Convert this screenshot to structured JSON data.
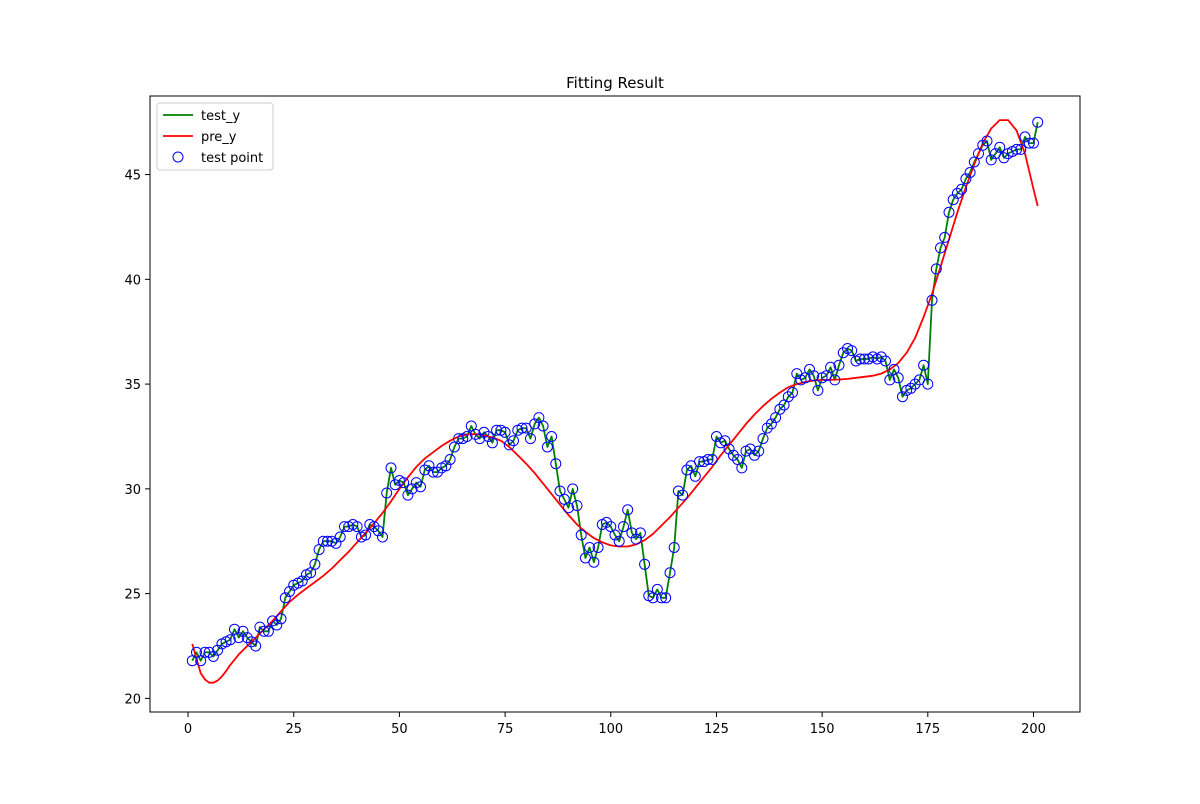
{
  "chart_data": {
    "type": "line",
    "title": "Fitting Result",
    "xlabel": "",
    "ylabel": "",
    "xlim": [
      -9,
      211
    ],
    "ylim": [
      19.35,
      48.75
    ],
    "x_ticks": [
      0,
      25,
      50,
      75,
      100,
      125,
      150,
      175,
      200
    ],
    "y_ticks": [
      20,
      25,
      30,
      35,
      40,
      45
    ],
    "grid": false,
    "legend_position": "upper-left",
    "legend": [
      {
        "label": "test_y",
        "kind": "line",
        "color": "#008000"
      },
      {
        "label": "pre_y",
        "kind": "line",
        "color": "#ff0000"
      },
      {
        "label": "test point",
        "kind": "marker",
        "color": "#0000ff"
      }
    ],
    "series": [
      {
        "name": "test_y",
        "kind": "line",
        "color": "#008000",
        "x": [
          1,
          2,
          3,
          4,
          5,
          6,
          7,
          8,
          9,
          10,
          11,
          12,
          13,
          14,
          15,
          16,
          17,
          18,
          19,
          20,
          21,
          22,
          23,
          24,
          25,
          26,
          27,
          28,
          29,
          30,
          31,
          32,
          33,
          34,
          35,
          36,
          37,
          38,
          39,
          40,
          41,
          42,
          43,
          44,
          45,
          46,
          47,
          48,
          49,
          50,
          51,
          52,
          53,
          54,
          55,
          56,
          57,
          58,
          59,
          60,
          61,
          62,
          63,
          64,
          65,
          66,
          67,
          68,
          69,
          70,
          71,
          72,
          73,
          74,
          75,
          76,
          77,
          78,
          79,
          80,
          81,
          82,
          83,
          84,
          85,
          86,
          87,
          88,
          89,
          90,
          91,
          92,
          93,
          94,
          95,
          96,
          97,
          98,
          99,
          100,
          101,
          102,
          103,
          104,
          105,
          106,
          107,
          108,
          109,
          110,
          111,
          112,
          113,
          114,
          115,
          116,
          117,
          118,
          119,
          120,
          121,
          122,
          123,
          124,
          125,
          126,
          127,
          128,
          129,
          130,
          131,
          132,
          133,
          134,
          135,
          136,
          137,
          138,
          139,
          140,
          141,
          142,
          143,
          144,
          145,
          146,
          147,
          148,
          149,
          150,
          151,
          152,
          153,
          154,
          155,
          156,
          157,
          158,
          159,
          160,
          161,
          162,
          163,
          164,
          165,
          166,
          167,
          168,
          169,
          170,
          171,
          172,
          173,
          174,
          175,
          176,
          177,
          178,
          179,
          180,
          181,
          182,
          183,
          184,
          185,
          186,
          187,
          188,
          189,
          190,
          191,
          192,
          193,
          194,
          195,
          196,
          197,
          198,
          199,
          200,
          201
        ],
        "values": [
          21.8,
          22.2,
          21.8,
          22.2,
          22.2,
          22.0,
          22.3,
          22.6,
          22.7,
          22.8,
          23.3,
          22.9,
          23.2,
          22.9,
          22.7,
          22.5,
          23.4,
          23.2,
          23.2,
          23.7,
          23.5,
          23.8,
          24.8,
          25.1,
          25.4,
          25.5,
          25.6,
          25.9,
          26.0,
          26.4,
          27.1,
          27.5,
          27.5,
          27.5,
          27.4,
          27.7,
          28.2,
          28.2,
          28.3,
          28.2,
          27.7,
          27.8,
          28.3,
          28.2,
          28.0,
          27.7,
          29.8,
          31.0,
          30.2,
          30.4,
          30.3,
          29.7,
          30.0,
          30.3,
          30.1,
          30.9,
          31.1,
          30.8,
          30.8,
          31.0,
          31.1,
          31.4,
          32.0,
          32.4,
          32.4,
          32.5,
          33.0,
          32.6,
          32.4,
          32.7,
          32.5,
          32.2,
          32.8,
          32.8,
          32.7,
          32.1,
          32.3,
          32.8,
          32.9,
          32.9,
          32.4,
          33.1,
          33.4,
          33.0,
          32.0,
          32.5,
          31.2,
          29.9,
          29.5,
          29.1,
          30.0,
          29.2,
          27.8,
          26.7,
          27.2,
          26.5,
          27.2,
          28.3,
          28.4,
          28.2,
          27.8,
          27.5,
          28.2,
          29.0,
          27.9,
          27.6,
          27.9,
          26.4,
          24.9,
          24.8,
          25.2,
          24.8,
          24.8,
          26.0,
          27.2,
          29.9,
          29.7,
          30.9,
          31.1,
          30.6,
          31.3,
          31.3,
          31.4,
          31.4,
          32.5,
          32.2,
          32.3,
          31.9,
          31.6,
          31.4,
          31.0,
          31.8,
          31.9,
          31.6,
          31.8,
          32.4,
          32.9,
          33.1,
          33.4,
          33.8,
          34.0,
          34.4,
          34.6,
          35.5,
          35.2,
          35.3,
          35.7,
          35.4,
          34.7,
          35.3,
          35.4,
          35.8,
          35.2,
          35.9,
          36.5,
          36.7,
          36.6,
          36.1,
          36.2,
          36.2,
          36.2,
          36.3,
          36.2,
          36.3,
          36.1,
          35.2,
          35.7,
          35.3,
          34.4,
          34.7,
          34.8,
          35.0,
          35.2,
          35.9,
          35.0,
          39.0,
          40.5,
          41.5,
          42.0,
          43.2,
          43.8,
          44.1,
          44.3,
          44.8,
          45.1,
          45.6,
          46.0,
          46.4,
          46.6,
          45.7,
          46.0,
          46.3,
          45.8,
          46.0,
          46.1,
          46.2,
          46.2,
          46.8,
          46.5,
          46.5,
          47.5
        ]
      },
      {
        "name": "pre_y",
        "kind": "line",
        "color": "#ff0000",
        "x": [
          1,
          2,
          3,
          4,
          5,
          6,
          7,
          8,
          9,
          10,
          12,
          14,
          16,
          18,
          20,
          22,
          24,
          26,
          28,
          30,
          32,
          34,
          36,
          38,
          40,
          42,
          44,
          46,
          48,
          50,
          52,
          54,
          56,
          58,
          60,
          62,
          64,
          66,
          68,
          70,
          72,
          74,
          76,
          78,
          80,
          82,
          84,
          86,
          88,
          90,
          92,
          94,
          96,
          98,
          100,
          102,
          104,
          106,
          108,
          110,
          112,
          114,
          116,
          118,
          120,
          122,
          124,
          126,
          128,
          130,
          132,
          134,
          136,
          138,
          140,
          142,
          144,
          146,
          148,
          150,
          152,
          154,
          156,
          158,
          160,
          162,
          164,
          166,
          168,
          170,
          172,
          174,
          176,
          178,
          180,
          182,
          184,
          186,
          188,
          190,
          192,
          194,
          196,
          198,
          200,
          201
        ],
        "values": [
          22.6,
          21.9,
          21.2,
          20.9,
          20.75,
          20.75,
          20.85,
          21.05,
          21.3,
          21.6,
          22.1,
          22.5,
          22.9,
          23.3,
          23.7,
          24.15,
          24.6,
          24.95,
          25.25,
          25.55,
          25.85,
          26.2,
          26.6,
          27.0,
          27.45,
          27.9,
          28.35,
          28.85,
          29.4,
          30.0,
          30.55,
          31.05,
          31.45,
          31.75,
          32.05,
          32.3,
          32.5,
          32.6,
          32.62,
          32.55,
          32.45,
          32.3,
          32.0,
          31.6,
          31.2,
          30.75,
          30.25,
          29.75,
          29.25,
          28.75,
          28.3,
          27.95,
          27.65,
          27.45,
          27.3,
          27.25,
          27.25,
          27.35,
          27.55,
          27.85,
          28.25,
          28.65,
          29.1,
          29.55,
          30.05,
          30.55,
          31.05,
          31.6,
          32.1,
          32.6,
          33.1,
          33.55,
          33.95,
          34.3,
          34.6,
          34.85,
          35.0,
          35.1,
          35.17,
          35.2,
          35.2,
          35.22,
          35.25,
          35.3,
          35.35,
          35.4,
          35.5,
          35.7,
          36.0,
          36.5,
          37.2,
          38.2,
          39.3,
          40.6,
          41.9,
          43.2,
          44.4,
          45.5,
          46.5,
          47.2,
          47.6,
          47.6,
          47.1,
          46.0,
          44.3,
          43.5
        ]
      },
      {
        "name": "test point",
        "kind": "scatter",
        "color": "#0000ff",
        "same_as": "test_y"
      }
    ]
  }
}
